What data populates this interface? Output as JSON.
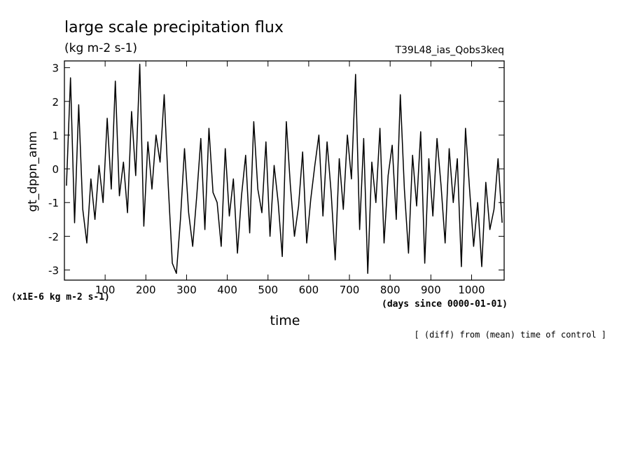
{
  "chart_data": {
    "type": "line",
    "title": "large scale precipitation flux",
    "subtitle": "(kg m-2 s-1)",
    "run_label": "T39L48_ias_Qobs3keq",
    "y_label": "gt_dppn_anm",
    "y_unit_note": "(x1E-6 kg m-2 s-1)",
    "x_label": "time",
    "x_unit_note": "(days since 0000-01-01)",
    "footnote": "[ (diff) from (mean) time of control ]",
    "color": "#000000",
    "xlim": [
      0,
      1080
    ],
    "xticks": [
      100,
      200,
      300,
      400,
      500,
      600,
      700,
      800,
      900,
      1000
    ],
    "ylim": [
      -3.3,
      3.2
    ],
    "yticks": [
      -3,
      -2,
      -1,
      0,
      1,
      2,
      3
    ],
    "x": [
      5,
      15,
      25,
      35,
      45,
      55,
      65,
      75,
      85,
      95,
      105,
      115,
      125,
      135,
      145,
      155,
      165,
      175,
      185,
      195,
      205,
      215,
      225,
      235,
      245,
      255,
      265,
      275,
      285,
      295,
      305,
      315,
      325,
      335,
      345,
      355,
      365,
      375,
      385,
      395,
      405,
      415,
      425,
      435,
      445,
      455,
      465,
      475,
      485,
      495,
      505,
      515,
      525,
      535,
      545,
      555,
      565,
      575,
      585,
      595,
      605,
      615,
      625,
      635,
      645,
      655,
      665,
      675,
      685,
      695,
      705,
      715,
      725,
      735,
      745,
      755,
      765,
      775,
      785,
      795,
      805,
      815,
      825,
      835,
      845,
      855,
      865,
      875,
      885,
      895,
      905,
      915,
      925,
      935,
      945,
      955,
      965,
      975,
      985,
      995,
      1005,
      1015,
      1025,
      1035,
      1045,
      1055,
      1065,
      1075
    ],
    "values": [
      -0.5,
      2.7,
      -1.6,
      1.9,
      -1.2,
      -2.2,
      -0.3,
      -1.5,
      0.1,
      -1.0,
      1.5,
      -0.6,
      2.6,
      -0.8,
      0.2,
      -1.3,
      1.7,
      -0.2,
      3.1,
      -1.7,
      0.8,
      -0.6,
      1.0,
      0.2,
      2.2,
      -0.5,
      -2.8,
      -3.1,
      -1.5,
      0.6,
      -1.3,
      -2.3,
      -0.8,
      0.9,
      -1.8,
      1.2,
      -0.7,
      -1.0,
      -2.3,
      0.6,
      -1.4,
      -0.3,
      -2.5,
      -0.8,
      0.4,
      -1.9,
      1.4,
      -0.6,
      -1.3,
      0.8,
      -2.0,
      0.1,
      -1.0,
      -2.6,
      1.4,
      -0.5,
      -2.0,
      -1.1,
      0.5,
      -2.2,
      -0.9,
      0.1,
      1.0,
      -1.4,
      0.8,
      -0.7,
      -2.7,
      0.3,
      -1.2,
      1.0,
      -0.3,
      2.8,
      -1.8,
      0.9,
      -3.1,
      0.2,
      -1.0,
      1.2,
      -2.2,
      -0.2,
      0.7,
      -1.5,
      2.2,
      -0.6,
      -2.5,
      0.4,
      -1.1,
      1.1,
      -2.8,
      0.3,
      -1.4,
      0.9,
      -0.5,
      -2.2,
      0.6,
      -1.0,
      0.3,
      -2.9,
      1.2,
      -0.6,
      -2.3,
      -1.0,
      -2.9,
      -0.4,
      -1.8,
      -1.2,
      0.3,
      -1.6
    ]
  }
}
